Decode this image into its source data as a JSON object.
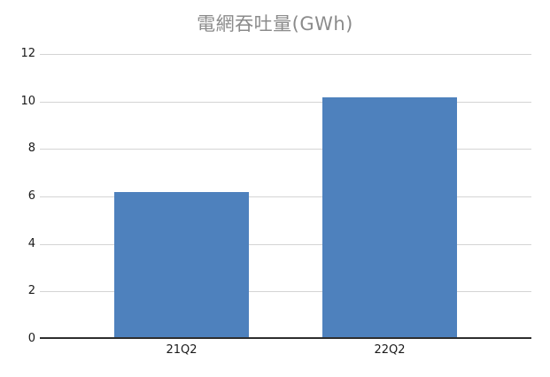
{
  "chart_data": {
    "type": "bar",
    "title": "電網吞吐量(GWh)",
    "categories": [
      "21Q2",
      "22Q2"
    ],
    "values": [
      6.1,
      10.1
    ],
    "xlabel": "",
    "ylabel": "",
    "ylim": [
      0,
      12
    ],
    "yticks": [
      0,
      2,
      4,
      6,
      8,
      10,
      12
    ],
    "grid": true,
    "legend": false,
    "colors": {
      "bar": "#4e81bd",
      "gridline": "#d4d4d4",
      "axis_line": "#2e2e2e",
      "tick_label": "#1a1a1a",
      "title": "#8b8b8b"
    },
    "layout": {
      "bar_center_fracs": [
        0.289,
        0.712
      ],
      "bar_width_frac": 0.274
    }
  }
}
